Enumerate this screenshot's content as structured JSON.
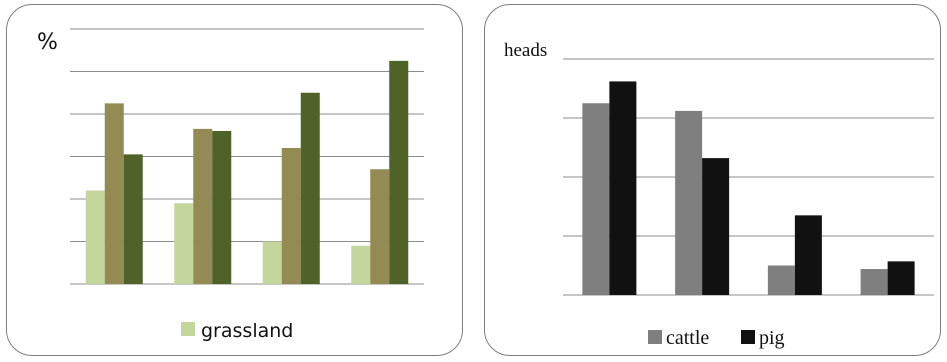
{
  "chart_data": [
    {
      "type": "bar",
      "ylabel": "%",
      "ylim": [
        0,
        6
      ],
      "grid": true,
      "legend_position": "bottom",
      "categories": [
        "",
        "",
        "",
        ""
      ],
      "series": [
        {
          "name": "grassland",
          "values": [
            2.2,
            1.9,
            1.0,
            0.9
          ],
          "color": "#c3d69b"
        },
        {
          "name": "",
          "values": [
            4.25,
            3.65,
            3.2,
            2.7
          ],
          "color": "#948a54"
        },
        {
          "name": "",
          "values": [
            3.05,
            3.6,
            4.5,
            5.25
          ],
          "color": "#4f6228"
        }
      ]
    },
    {
      "type": "bar",
      "ylabel": "heads",
      "ylim": [
        0,
        4
      ],
      "grid": true,
      "legend_position": "bottom",
      "categories": [
        "",
        "",
        "",
        ""
      ],
      "series": [
        {
          "name": "cattle",
          "values": [
            3.25,
            3.12,
            0.5,
            0.44
          ],
          "color": "#7f7f7f"
        },
        {
          "name": "pig",
          "values": [
            3.62,
            2.32,
            1.35,
            0.57
          ],
          "color": "#111111"
        }
      ]
    }
  ]
}
